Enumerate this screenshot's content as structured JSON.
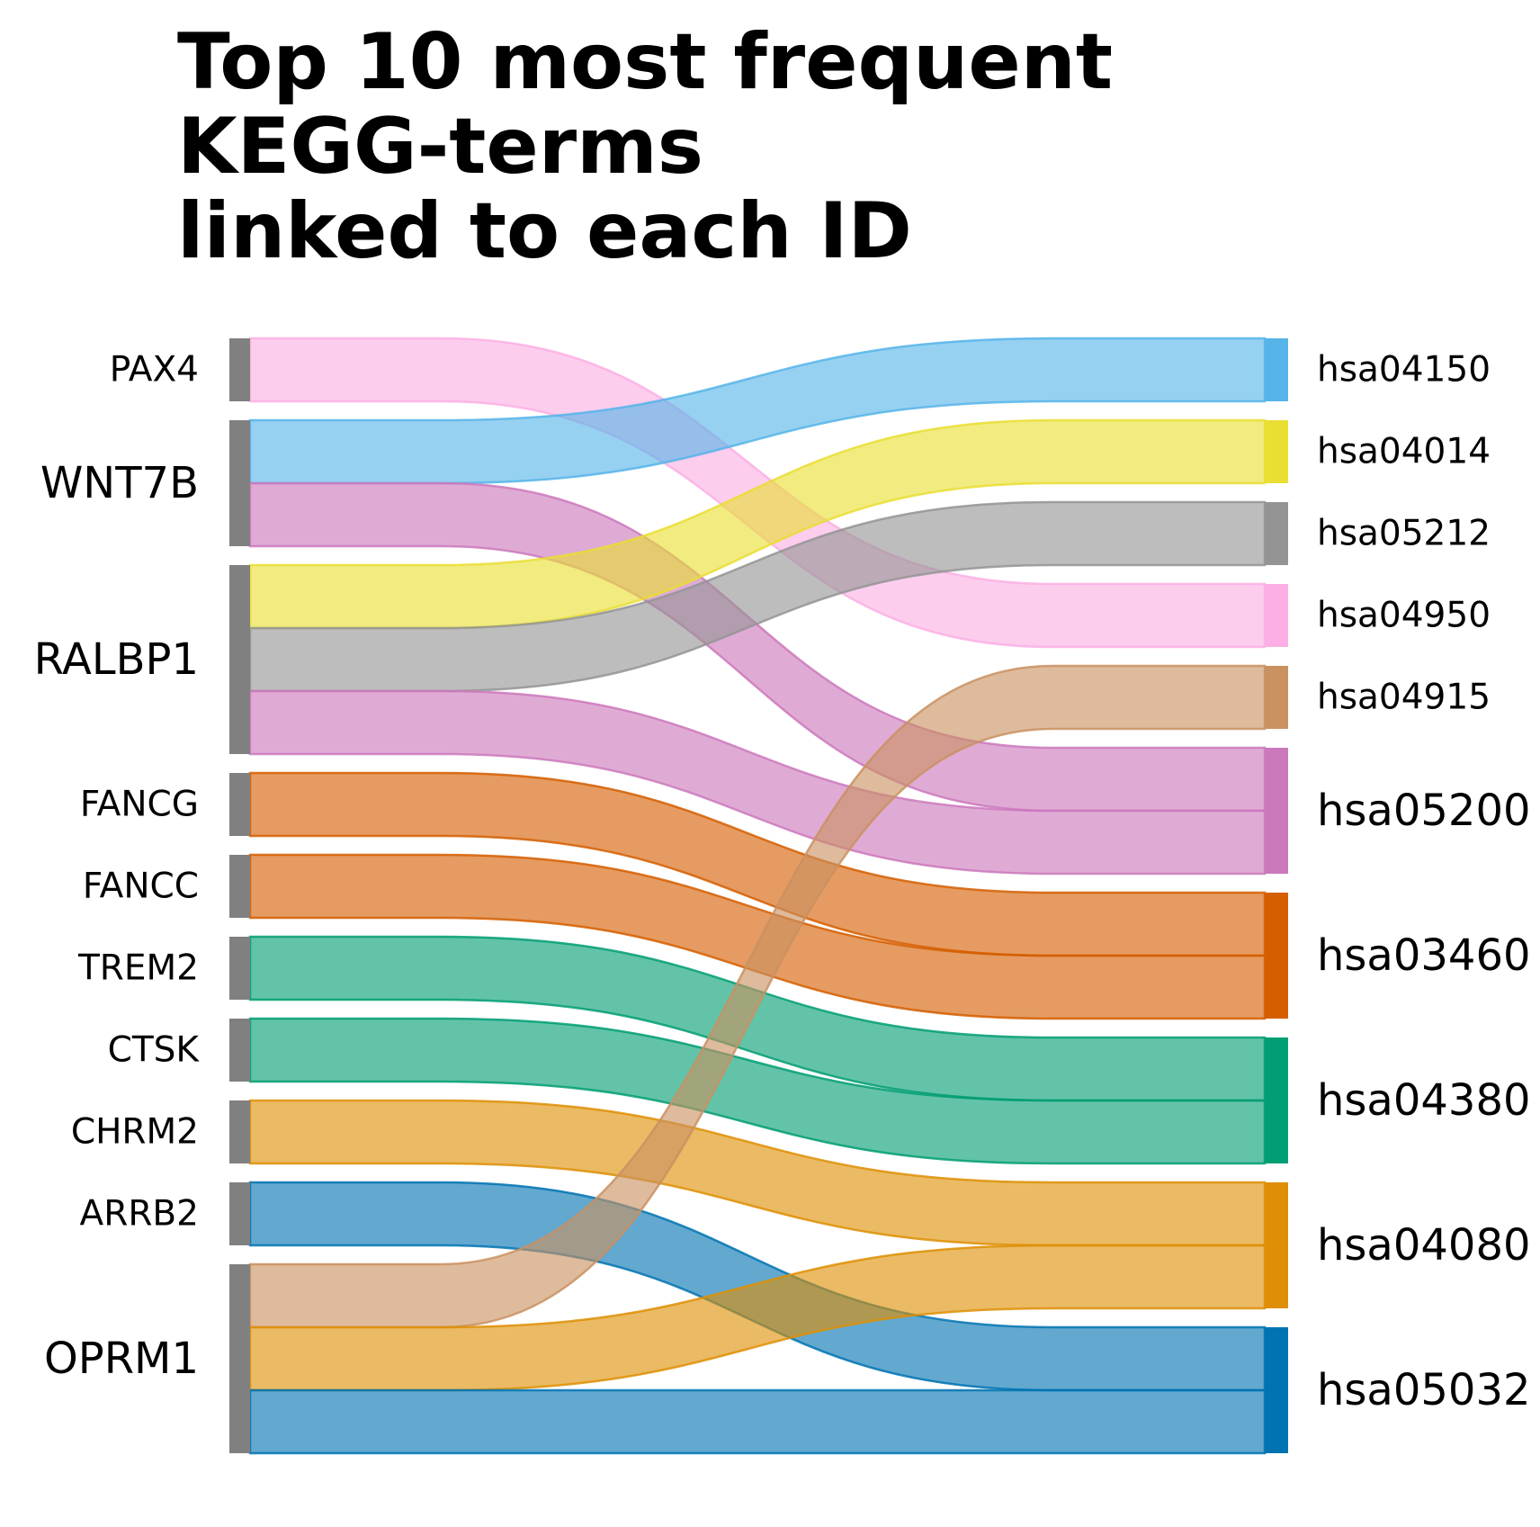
{
  "chart_data": {
    "type": "sankey",
    "title": [
      "Top 10 most frequent",
      "KEGG-terms",
      "linked to each ID"
    ],
    "left_nodes": [
      "PAX4",
      "WNT7B",
      "RALBP1",
      "FANCG",
      "FANCC",
      "TREM2",
      "CTSK",
      "CHRM2",
      "ARRB2",
      "OPRM1"
    ],
    "right_nodes": [
      {
        "name": "hsa04150",
        "color": "#56B4E9"
      },
      {
        "name": "hsa04014",
        "color": "#E9DE32"
      },
      {
        "name": "hsa05212",
        "color": "#949494"
      },
      {
        "name": "hsa04950",
        "color": "#FBAFE4"
      },
      {
        "name": "hsa04915",
        "color": "#CA9161"
      },
      {
        "name": "hsa05200",
        "color": "#CC78BC"
      },
      {
        "name": "hsa03460",
        "color": "#D55E00"
      },
      {
        "name": "hsa04380",
        "color": "#029E73"
      },
      {
        "name": "hsa04080",
        "color": "#DE8F05"
      },
      {
        "name": "hsa05032",
        "color": "#0173B2"
      }
    ],
    "left_node_color": "#808080",
    "links": [
      {
        "source": "PAX4",
        "target": "hsa04950",
        "value": 1
      },
      {
        "source": "WNT7B",
        "target": "hsa04150",
        "value": 1
      },
      {
        "source": "WNT7B",
        "target": "hsa05200",
        "value": 1
      },
      {
        "source": "RALBP1",
        "target": "hsa04014",
        "value": 1
      },
      {
        "source": "RALBP1",
        "target": "hsa05212",
        "value": 1
      },
      {
        "source": "RALBP1",
        "target": "hsa05200",
        "value": 1
      },
      {
        "source": "FANCG",
        "target": "hsa03460",
        "value": 1
      },
      {
        "source": "FANCC",
        "target": "hsa03460",
        "value": 1
      },
      {
        "source": "TREM2",
        "target": "hsa04380",
        "value": 1
      },
      {
        "source": "CTSK",
        "target": "hsa04380",
        "value": 1
      },
      {
        "source": "CHRM2",
        "target": "hsa04080",
        "value": 1
      },
      {
        "source": "ARRB2",
        "target": "hsa05032",
        "value": 1
      },
      {
        "source": "OPRM1",
        "target": "hsa04915",
        "value": 1
      },
      {
        "source": "OPRM1",
        "target": "hsa04080",
        "value": 1
      },
      {
        "source": "OPRM1",
        "target": "hsa05032",
        "value": 1
      }
    ]
  }
}
